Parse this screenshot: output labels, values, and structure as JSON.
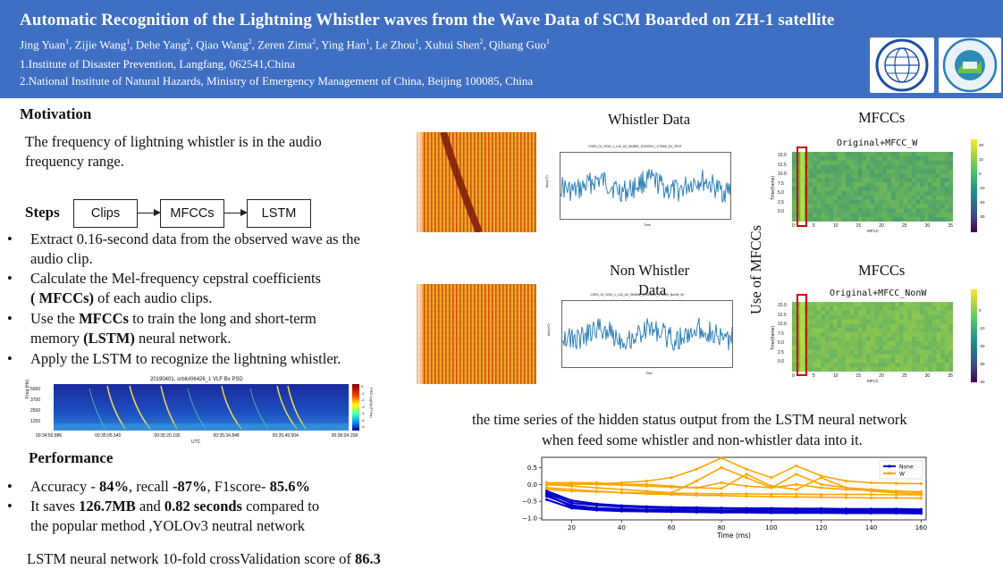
{
  "header": {
    "title": "Automatic Recognition of the Lightning Whistler waves from the Wave Data of SCM Boarded on ZH-1 satellite",
    "authors": [
      {
        "name": "Jing Yuan",
        "sup": "1"
      },
      {
        "name": "Zijie Wang",
        "sup": "1"
      },
      {
        "name": "Dehe Yang",
        "sup": "2"
      },
      {
        "name": "Qiao Wang",
        "sup": "2"
      },
      {
        "name": "Zeren Zima",
        "sup": "2"
      },
      {
        "name": "Ying Han",
        "sup": "1"
      },
      {
        "name": "Le Zhou",
        "sup": "1"
      },
      {
        "name": "Xuhui Shen",
        "sup": "2"
      },
      {
        "name": "Qihang Guo",
        "sup": "1"
      }
    ],
    "affiliation_1": "1.Institute of Disaster Prevention, Langfang, 062541,China",
    "affiliation_2": "2.National Institute of Natural Hazards, Ministry of Emergency Management of China, Beijing 100085, China"
  },
  "motivation": {
    "heading": "Motivation",
    "line1": "The frequency of lightning whistler is in the audio",
    "line2": "frequency range."
  },
  "steps": {
    "heading": "Steps",
    "flow": [
      "Clips",
      "MFCCs",
      "LSTM"
    ],
    "b1_l1": "Extract 0.16-second data from the observed wave as the",
    "b1_l2": "audio clip.",
    "b2_l1": "Calculate the Mel-frequency cepstral coefficients",
    "b2_l2a": "( MFCCs)",
    "b2_l2b": " of each audio clips.",
    "b3_l1a": "Use the ",
    "b3_l1b": "MFCCs",
    "b3_l1c": " to train the long and short-term",
    "b3_l2a": "memory ",
    "b3_l2b": "(LSTM)",
    "b3_l2c": " neural network.",
    "b4": "Apply the LSTM to recognize the lightning whistler."
  },
  "spectrogram_small": {
    "title": "20190401, orbit#06426_1 VLF Bx PSD",
    "ylabel": "Freq (Hz)",
    "yticks": [
      "5000",
      "3750",
      "2500",
      "1250"
    ],
    "xticks": [
      "00:34:50.886",
      "00:35:05.540",
      "00:35:20.195",
      "00:35:34.848",
      "00:35:49.504",
      "00:36:04.158"
    ],
    "xlabel": "UTC",
    "cbar_label": "PSD log10(nT²/Hz)",
    "cbar_ticks": [
      "0",
      "-1",
      "-2",
      "-3",
      "-4",
      "-5",
      "-6"
    ]
  },
  "performance": {
    "heading": "Performance",
    "p1a": "Accuracy - ",
    "p1b": "84%",
    "p1c": ", recall ",
    "p1d": "-87%",
    "p1e": ", F1score- ",
    "p1f": "85.6%",
    "p2a": "It saves ",
    "p2b": "126.7MB",
    "p2c": " and ",
    "p2d": "0.82 seconds",
    "p2e": " compared to",
    "p2f": "the popular method ,YOLOv3 neutral network",
    "cv_a": "LSTM  neural network 10-fold crossValidation score of ",
    "cv_b": "86.3"
  },
  "right": {
    "whistler_data": "Whistler Data",
    "non_whistler_l1": "Non Whistler",
    "non_whistler_l2": "Data",
    "mfccs_1": "MFCCs",
    "mfccs_2": "MFCCs",
    "use_of_mfccs": "Use  of  MFCCs",
    "heatmap1_title": "Original+MFCC_W",
    "heatmap2_title": "Original+MFCC_NonW",
    "heatmap_ylabel": "Time(frame)",
    "heatmap_xlabel": "MFCC",
    "heatmap_xticks": [
      "0",
      "5",
      "10",
      "15",
      "20",
      "25",
      "30",
      "35"
    ],
    "heatmap_yticks": [
      "15.0",
      "12.5",
      "10.0",
      "7.5",
      "5.0",
      "2.5",
      "0.0"
    ],
    "cbar1_ticks": [
      "20",
      "10",
      "0",
      "-10",
      "-20",
      "-30"
    ],
    "cbar2_ticks": [
      "0",
      "-10",
      "-20",
      "-30",
      "-40"
    ],
    "wave1_title": "CSES_01_SCM_1_L02_A2_064851_20190001_173652_E4_TEST",
    "wave2_title": "CSES_01_SCM_1_L02_A2_060841_20190001_175050_NonW_W",
    "wave_xlabel": "Time",
    "wave_ylabel": "Amp(nT)",
    "caption_l1": "the time series  of the hidden status  output from the LSTM  neural network",
    "caption_l2": "when feed some whistler and non-whistler data into it."
  },
  "chart_data": {
    "type": "line",
    "title": "",
    "xlabel": "Time (ms)",
    "ylabel": "",
    "xlim": [
      8,
      162
    ],
    "ylim": [
      -1.05,
      0.8
    ],
    "xticks": [
      20,
      40,
      60,
      80,
      100,
      120,
      140,
      160
    ],
    "yticks": [
      0.5,
      0.0,
      -0.5,
      -1.0
    ],
    "ytick_labels": [
      "0.5",
      "0.0",
      "−0.5",
      "−1.0"
    ],
    "legend": [
      "None",
      "W"
    ],
    "legend_position": "top-right",
    "x": [
      10,
      20,
      30,
      40,
      50,
      60,
      70,
      80,
      90,
      100,
      110,
      120,
      130,
      140,
      150,
      160
    ],
    "series": [
      {
        "name": "None",
        "color": "#0000cc",
        "values": [
          -0.25,
          -0.55,
          -0.62,
          -0.66,
          -0.68,
          -0.7,
          -0.71,
          -0.72,
          -0.73,
          -0.73,
          -0.74,
          -0.74,
          -0.75,
          -0.75,
          -0.76,
          -0.76
        ]
      },
      {
        "name": "None",
        "color": "#0000cc",
        "values": [
          -0.35,
          -0.62,
          -0.7,
          -0.73,
          -0.75,
          -0.76,
          -0.77,
          -0.78,
          -0.78,
          -0.79,
          -0.79,
          -0.8,
          -0.8,
          -0.8,
          -0.81,
          -0.81
        ]
      },
      {
        "name": "None",
        "color": "#0000cc",
        "values": [
          -0.45,
          -0.7,
          -0.76,
          -0.79,
          -0.8,
          -0.81,
          -0.82,
          -0.83,
          -0.83,
          -0.84,
          -0.84,
          -0.84,
          -0.85,
          -0.85,
          -0.85,
          -0.86
        ]
      },
      {
        "name": "None",
        "color": "#0000cc",
        "values": [
          -0.2,
          -0.48,
          -0.58,
          -0.63,
          -0.66,
          -0.68,
          -0.69,
          -0.7,
          -0.71,
          -0.71,
          -0.72,
          -0.72,
          -0.73,
          -0.73,
          -0.73,
          -0.74
        ]
      },
      {
        "name": "None",
        "color": "#0000cc",
        "values": [
          -0.3,
          -0.66,
          -0.74,
          -0.77,
          -0.79,
          -0.8,
          -0.8,
          -0.81,
          -0.82,
          -0.82,
          -0.82,
          -0.83,
          -0.83,
          -0.83,
          -0.84,
          -0.84
        ]
      },
      {
        "name": "W",
        "color": "#ffa500",
        "values": [
          -0.02,
          0.0,
          0.02,
          0.05,
          0.1,
          0.2,
          0.45,
          0.78,
          0.45,
          0.2,
          0.55,
          0.25,
          0.1,
          0.05,
          0.03,
          0.02
        ]
      },
      {
        "name": "W",
        "color": "#ffa500",
        "values": [
          0.0,
          -0.05,
          -0.1,
          -0.15,
          -0.2,
          -0.25,
          0.1,
          0.5,
          0.2,
          -0.1,
          0.3,
          0.0,
          -0.1,
          -0.15,
          -0.2,
          -0.25
        ]
      },
      {
        "name": "W",
        "color": "#ffa500",
        "values": [
          -0.1,
          -0.15,
          -0.2,
          -0.25,
          -0.28,
          -0.3,
          -0.32,
          -0.33,
          -0.35,
          -0.36,
          -0.37,
          -0.38,
          -0.39,
          -0.4,
          -0.4,
          -0.41
        ]
      },
      {
        "name": "W",
        "color": "#ffa500",
        "values": [
          0.05,
          0.05,
          0.05,
          0.0,
          0.0,
          -0.05,
          -0.1,
          0.05,
          -0.05,
          -0.1,
          0.0,
          -0.1,
          -0.15,
          -0.18,
          -0.2,
          -0.22
        ]
      },
      {
        "name": "W",
        "color": "#ffa500",
        "values": [
          -0.15,
          -0.2,
          -0.22,
          -0.24,
          -0.25,
          -0.26,
          -0.27,
          -0.28,
          -0.28,
          -0.29,
          -0.29,
          -0.3,
          -0.3,
          -0.3,
          -0.31,
          -0.31
        ]
      },
      {
        "name": "W",
        "color": "#ffa500",
        "values": [
          0.0,
          0.02,
          0.0,
          -0.02,
          -0.05,
          -0.08,
          -0.1,
          -0.12,
          0.3,
          -0.05,
          -0.15,
          0.2,
          -0.1,
          -0.2,
          -0.25,
          -0.3
        ]
      }
    ]
  },
  "colors": {
    "header_bg": "#3f6fc3",
    "highlight_red": "#d00000",
    "wave_blue": "#1f77b4"
  }
}
